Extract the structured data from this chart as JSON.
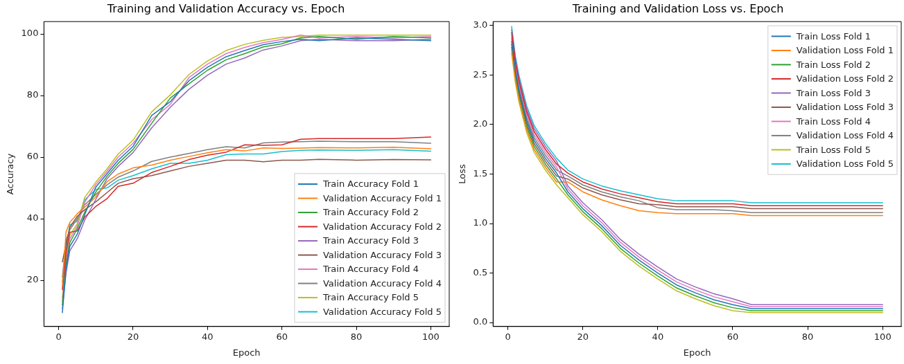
{
  "chart_data": [
    {
      "type": "line",
      "title": "Training and Validation Accuracy vs. Epoch",
      "xlabel": "Epoch",
      "ylabel": "Accuracy",
      "legend": "bottom right",
      "grid": false,
      "marker": "none",
      "line_style": "solid",
      "x": [
        1,
        2,
        3,
        5,
        7,
        10,
        13,
        16,
        20,
        25,
        30,
        35,
        40,
        45,
        50,
        55,
        60,
        65,
        70,
        80,
        90,
        100
      ],
      "xlim": [
        -3.95,
        104.95
      ],
      "xticks": [
        0,
        20,
        40,
        60,
        80,
        100
      ],
      "ylim": [
        5,
        104
      ],
      "yticks": [
        20,
        40,
        60,
        80,
        100
      ],
      "series": [
        {
          "name": "Train Accuracy Fold 1",
          "color": "#1f77b4",
          "values": [
            9.5,
            24,
            31,
            35,
            41.3,
            50.3,
            54.6,
            59,
            63.5,
            73.5,
            78,
            84.8,
            89.2,
            92.6,
            94.6,
            96.5,
            97.5,
            98.25,
            97.8,
            98.7,
            98.25,
            97.8
          ]
        },
        {
          "name": "Validation Accuracy Fold 1",
          "color": "#ff7f0e",
          "values": [
            18.2,
            35.8,
            38.8,
            41.6,
            43.7,
            47.1,
            52,
            54.5,
            56.5,
            57.4,
            59,
            60.2,
            61.4,
            62.4,
            62,
            63,
            62.8,
            62.9,
            63.1,
            63,
            63.2,
            62.7
          ]
        },
        {
          "name": "Train Accuracy Fold 2",
          "color": "#2ca02c",
          "values": [
            12,
            25.3,
            32.2,
            36.8,
            42.1,
            48.7,
            53.8,
            58,
            62.5,
            71,
            79.2,
            83.8,
            88.2,
            91.6,
            93.6,
            95.8,
            96.8,
            98.7,
            99.15,
            98.25,
            99.15,
            98.7
          ]
        },
        {
          "name": "Validation Accuracy Fold 2",
          "color": "#d62728",
          "values": [
            17,
            29.2,
            35.6,
            36,
            40.5,
            44,
            46.5,
            50.5,
            51.5,
            55,
            57,
            59.2,
            60.6,
            61.6,
            64,
            63.8,
            64,
            65.8,
            66,
            66,
            66,
            66.5
          ]
        },
        {
          "name": "Train Accuracy Fold 3",
          "color": "#9467bd",
          "values": [
            10.8,
            22.5,
            29.6,
            33.5,
            39.5,
            46.3,
            53,
            57,
            61.5,
            69.5,
            76.2,
            82,
            86.6,
            90.2,
            92.2,
            94.8,
            96.1,
            97.8,
            98.25,
            97.8,
            97.8,
            98.25
          ]
        },
        {
          "name": "Validation Accuracy Fold 3",
          "color": "#8c564b",
          "values": [
            26,
            31.8,
            37.2,
            40.8,
            42.9,
            45.5,
            48.5,
            51.5,
            53,
            54,
            55.5,
            57,
            58,
            59,
            59,
            58.5,
            59,
            59,
            59.3,
            59,
            59.2,
            59.1
          ]
        },
        {
          "name": "Train Accuracy Fold 4",
          "color": "#e377c2",
          "values": [
            13.2,
            26.6,
            33.4,
            37.6,
            45.3,
            51.1,
            55.4,
            60,
            64.5,
            72.2,
            77.1,
            85.8,
            90.2,
            93.6,
            95.6,
            97.2,
            98.2,
            99.6,
            98.7,
            99.15,
            98.7,
            99.15
          ]
        },
        {
          "name": "Validation Accuracy Fold 4",
          "color": "#7f7f7f",
          "values": [
            21,
            33,
            36.4,
            40,
            44.5,
            47.9,
            51,
            53.5,
            55.5,
            58.6,
            60,
            61.2,
            62.4,
            63.4,
            63,
            64.6,
            64.9,
            65,
            65.2,
            65,
            65,
            64.5
          ]
        },
        {
          "name": "Train Accuracy Fold 5",
          "color": "#bcbd22",
          "values": [
            14.4,
            27.9,
            34.6,
            38.4,
            46.9,
            51.9,
            56.2,
            61,
            65.5,
            74.7,
            80.2,
            86.8,
            91.2,
            94.6,
            96.6,
            97.9,
            98.9,
            99.15,
            99.6,
            99.6,
            99.6,
            99.6
          ]
        },
        {
          "name": "Validation Accuracy Fold 5",
          "color": "#17becf",
          "values": [
            19.4,
            30.4,
            38,
            39.2,
            46.1,
            49.5,
            50,
            52.5,
            54,
            56.2,
            58,
            58,
            59,
            60.8,
            61,
            61,
            61.8,
            62.2,
            62.3,
            62.2,
            62.4,
            61.9
          ]
        }
      ]
    },
    {
      "type": "line",
      "title": "Training and Validation Loss vs. Epoch",
      "xlabel": "Epoch",
      "ylabel": "Loss",
      "legend": "top right",
      "grid": false,
      "marker": "none",
      "line_style": "solid",
      "x": [
        1,
        2,
        3,
        5,
        7,
        10,
        13,
        16,
        20,
        25,
        30,
        35,
        40,
        45,
        50,
        55,
        60,
        65,
        70,
        80,
        90,
        100
      ],
      "xlim": [
        -3.95,
        104.95
      ],
      "xticks": [
        0,
        20,
        40,
        60,
        80,
        100
      ],
      "ylim": [
        -0.04,
        3.04
      ],
      "yticks": [
        {
          "value": 0,
          "label": "0.0"
        },
        0.5,
        {
          "value": 1,
          "label": "1.0"
        },
        1.5,
        {
          "value": 2,
          "label": "2.0"
        },
        2.5,
        {
          "value": 3,
          "label": "3.0"
        }
      ],
      "series": [
        {
          "name": "Train Loss Fold 1",
          "color": "#1f77b4",
          "values": [
            2.84,
            2.54,
            2.34,
            2.04,
            1.84,
            1.66,
            1.51,
            1.32,
            1.15,
            0.98,
            0.78,
            0.63,
            0.5,
            0.38,
            0.3,
            0.23,
            0.18,
            0.14,
            0.14,
            0.14,
            0.14,
            0.14
          ]
        },
        {
          "name": "Validation Loss Fold 1",
          "color": "#ff7f0e",
          "values": [
            2.75,
            2.45,
            2.25,
            1.95,
            1.75,
            1.57,
            1.42,
            1.42,
            1.32,
            1.24,
            1.18,
            1.13,
            1.11,
            1.1,
            1.1,
            1.1,
            1.1,
            1.08,
            1.08,
            1.08,
            1.08,
            1.08
          ]
        },
        {
          "name": "Train Loss Fold 2",
          "color": "#2ca02c",
          "values": [
            2.78,
            2.48,
            2.28,
            1.98,
            1.78,
            1.6,
            1.45,
            1.29,
            1.12,
            0.95,
            0.75,
            0.6,
            0.47,
            0.35,
            0.27,
            0.2,
            0.15,
            0.12,
            0.12,
            0.12,
            0.12,
            0.12
          ]
        },
        {
          "name": "Validation Loss Fold 2",
          "color": "#d62728",
          "values": [
            2.93,
            2.63,
            2.43,
            2.13,
            1.93,
            1.75,
            1.6,
            1.51,
            1.42,
            1.35,
            1.3,
            1.26,
            1.22,
            1.2,
            1.2,
            1.2,
            1.2,
            1.18,
            1.18,
            1.18,
            1.18,
            1.18
          ]
        },
        {
          "name": "Train Loss Fold 3",
          "color": "#9467bd",
          "values": [
            2.96,
            2.66,
            2.46,
            2.16,
            1.96,
            1.78,
            1.63,
            1.38,
            1.21,
            1.04,
            0.84,
            0.69,
            0.56,
            0.44,
            0.36,
            0.29,
            0.24,
            0.18,
            0.18,
            0.18,
            0.18,
            0.18
          ]
        },
        {
          "name": "Validation Loss Fold 3",
          "color": "#8c564b",
          "values": [
            2.81,
            2.51,
            2.31,
            2.01,
            1.81,
            1.63,
            1.48,
            1.45,
            1.36,
            1.29,
            1.24,
            1.2,
            1.19,
            1.17,
            1.17,
            1.17,
            1.17,
            1.15,
            1.15,
            1.15,
            1.15,
            1.15
          ]
        },
        {
          "name": "Train Loss Fold 4",
          "color": "#e377c2",
          "values": [
            2.9,
            2.6,
            2.4,
            2.1,
            1.9,
            1.72,
            1.57,
            1.35,
            1.18,
            1.01,
            0.81,
            0.66,
            0.53,
            0.41,
            0.33,
            0.26,
            0.21,
            0.16,
            0.16,
            0.16,
            0.16,
            0.16
          ]
        },
        {
          "name": "Validation Loss Fold 4",
          "color": "#7f7f7f",
          "values": [
            2.87,
            2.57,
            2.37,
            2.07,
            1.87,
            1.69,
            1.54,
            1.48,
            1.39,
            1.32,
            1.27,
            1.23,
            1.16,
            1.14,
            1.14,
            1.14,
            1.13,
            1.11,
            1.11,
            1.11,
            1.11,
            1.11
          ]
        },
        {
          "name": "Train Loss Fold 5",
          "color": "#bcbd22",
          "values": [
            2.72,
            2.42,
            2.22,
            1.92,
            1.72,
            1.54,
            1.39,
            1.26,
            1.09,
            0.92,
            0.72,
            0.57,
            0.44,
            0.32,
            0.24,
            0.17,
            0.12,
            0.1,
            0.1,
            0.1,
            0.1,
            0.1
          ]
        },
        {
          "name": "Validation Loss Fold 5",
          "color": "#17becf",
          "values": [
            2.99,
            2.69,
            2.49,
            2.19,
            1.99,
            1.81,
            1.66,
            1.54,
            1.45,
            1.38,
            1.33,
            1.29,
            1.25,
            1.23,
            1.23,
            1.23,
            1.23,
            1.21,
            1.21,
            1.21,
            1.21,
            1.21
          ]
        }
      ]
    }
  ]
}
